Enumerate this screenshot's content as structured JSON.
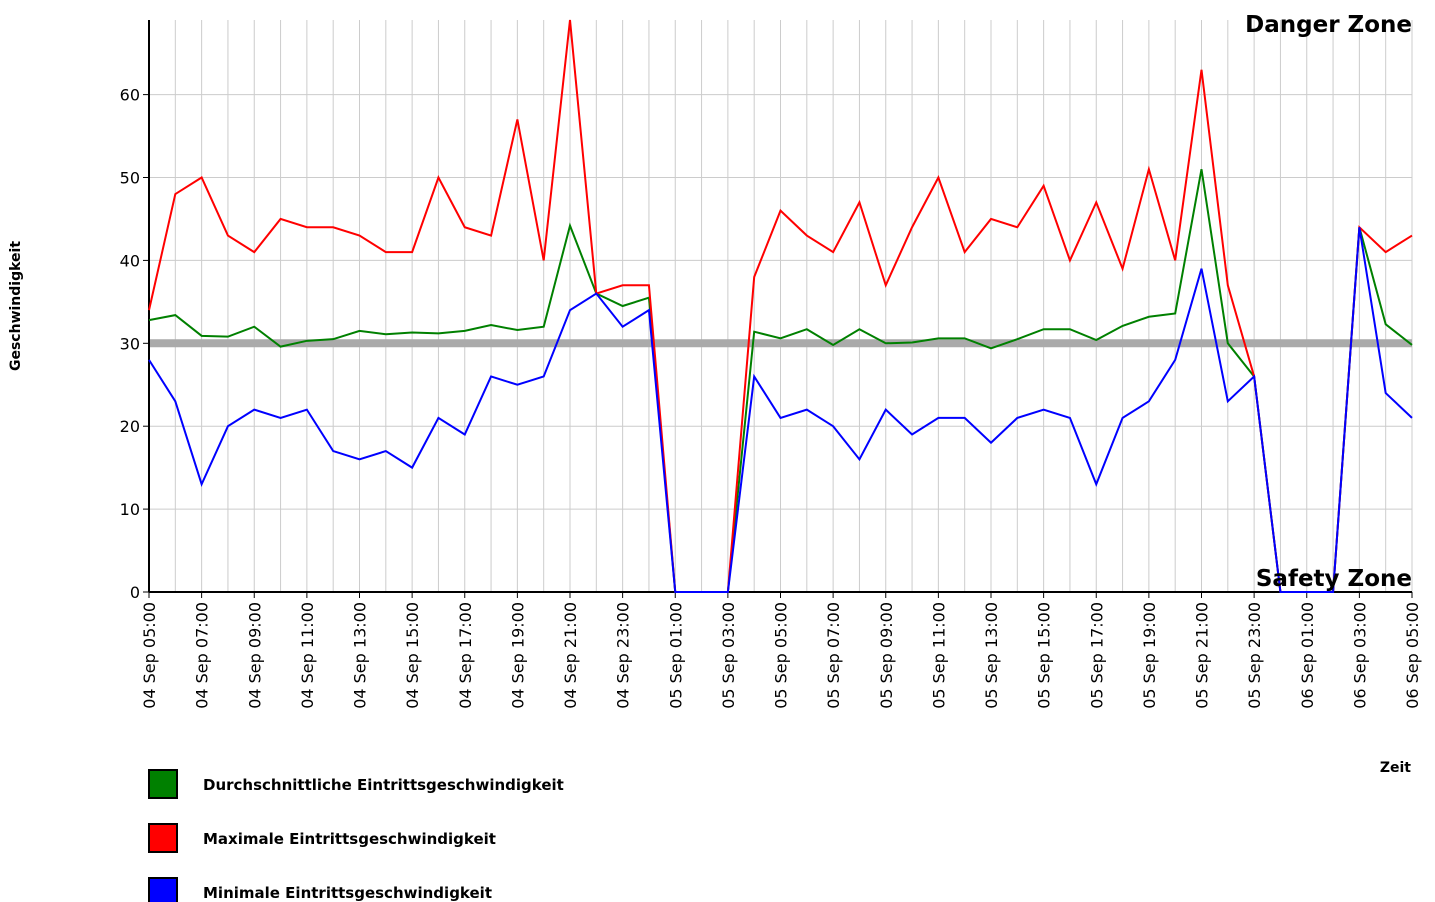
{
  "chart_data": {
    "type": "line",
    "y_label": "Geschwindigkeit",
    "x_label": "Zeit",
    "annotations": [
      {
        "text": "Danger Zone",
        "color": "#8b0000"
      },
      {
        "text": "Safety Zone",
        "color": "#1a6b0a"
      }
    ],
    "reference_line": {
      "value": 30,
      "color": "#aaaaaa"
    },
    "categories": [
      "04 Sep 05:00",
      null,
      "04 Sep 07:00",
      null,
      "04 Sep 09:00",
      null,
      "04 Sep 11:00",
      null,
      "04 Sep 13:00",
      null,
      "04 Sep 15:00",
      null,
      "04 Sep 17:00",
      null,
      "04 Sep 19:00",
      null,
      "04 Sep 21:00",
      null,
      "04 Sep 23:00",
      null,
      "05 Sep 01:00",
      null,
      "05 Sep 03:00",
      null,
      "05 Sep 05:00",
      null,
      "05 Sep 07:00",
      null,
      "05 Sep 09:00",
      null,
      "05 Sep 11:00",
      null,
      "05 Sep 13:00",
      null,
      "05 Sep 15:00",
      null,
      "05 Sep 17:00",
      null,
      "05 Sep 19:00",
      null,
      "05 Sep 21:00",
      null,
      "05 Sep 23:00",
      null,
      "06 Sep 01:00",
      null,
      "06 Sep 03:00",
      null,
      "06 Sep 05:00"
    ],
    "series": [
      {
        "name": "Durchschnittliche Eintrittsgeschwindigkeit",
        "color": "#008000",
        "values": [
          32.8,
          33.4,
          30.9,
          30.8,
          32,
          29.6,
          30.3,
          30.5,
          31.5,
          31.1,
          31.3,
          31.2,
          31.5,
          32.2,
          31.6,
          32,
          44.2,
          36,
          34.5,
          35.5,
          0,
          0,
          0,
          31.4,
          30.6,
          31.7,
          29.8,
          31.7,
          30,
          30.1,
          30.6,
          30.6,
          29.4,
          30.5,
          31.7,
          31.7,
          30.4,
          32.1,
          33.2,
          33.6,
          51,
          30,
          26,
          0,
          0,
          0,
          44,
          32.3,
          29.8
        ]
      },
      {
        "name": "Maximale Eintrittsgeschwindigkeit",
        "color": "#ff0000",
        "values": [
          34,
          48,
          50,
          43,
          41,
          45,
          44,
          44,
          43,
          41,
          41,
          50,
          44,
          43,
          57,
          40,
          69,
          36,
          37,
          37,
          0,
          0,
          0,
          38,
          46,
          43,
          41,
          47,
          37,
          44,
          50,
          41,
          45,
          44,
          49,
          40,
          47,
          39,
          51,
          40,
          63,
          37,
          26,
          0,
          0,
          0,
          44,
          41,
          43
        ]
      },
      {
        "name": "Minimale Eintrittsgeschwindigkeit",
        "color": "#0000ff",
        "values": [
          28,
          23,
          13,
          20,
          22,
          21,
          22,
          17,
          16,
          17,
          15,
          21,
          19,
          26,
          25,
          26,
          34,
          36,
          32,
          34,
          0,
          0,
          0,
          26,
          21,
          22,
          20,
          16,
          22,
          19,
          21,
          21,
          18,
          21,
          22,
          21,
          13,
          21,
          23,
          28,
          39,
          23,
          26,
          0,
          0,
          0,
          44,
          24,
          21
        ]
      }
    ],
    "ylim": [
      0,
      69
    ],
    "yticks": [
      0,
      10,
      20,
      30,
      40,
      50,
      60
    ],
    "grid": true
  }
}
